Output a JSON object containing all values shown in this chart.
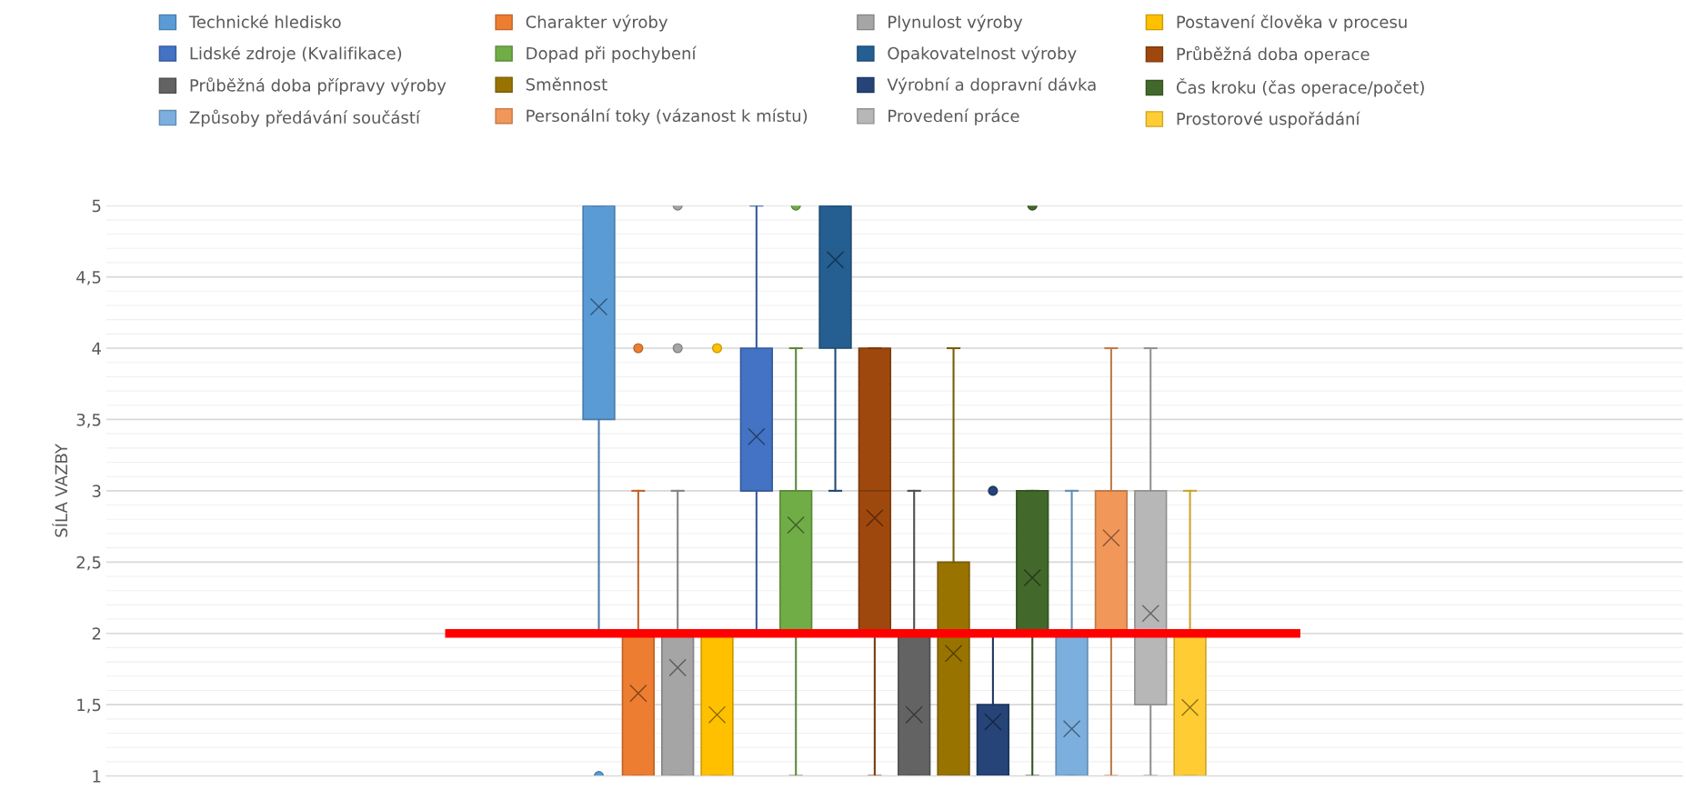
{
  "chart_data": {
    "type": "box",
    "ylabel": "SÍLA VAZBY",
    "categories": [
      null
    ],
    "ylim": [
      1,
      5
    ],
    "yticks": [
      1,
      {
        "value": 1.5,
        "label": "1,5"
      },
      2,
      {
        "value": 2.5,
        "label": "2,5"
      },
      3,
      {
        "value": 3.5,
        "label": "3,5"
      },
      4,
      {
        "value": 4.5,
        "label": "4,5"
      },
      5
    ],
    "grid": "y",
    "legend": "top",
    "tick_labels": "y",
    "ref_lines": [
      {
        "axis": "y",
        "value": 2,
        "color": "#ff0000",
        "line_style": "solid"
      }
    ],
    "series": [
      {
        "name": "Technické hledisko",
        "color": "#5b9bd5",
        "boxes": [
          {
            "low": 2,
            "q1": 3.5,
            "median": 5,
            "q3": 5,
            "high": 5,
            "mean": 4.29,
            "outliers": [
              1
            ]
          }
        ]
      },
      {
        "name": "Charakter výroby",
        "color": "#ed7d31",
        "boxes": [
          {
            "low": 1,
            "q1": 1,
            "median": 2,
            "q3": 2,
            "high": 3,
            "mean": 1.58,
            "outliers": [
              4
            ]
          }
        ]
      },
      {
        "name": "Plynulost výroby",
        "color": "#a5a5a5",
        "boxes": [
          {
            "low": 1,
            "q1": 1,
            "median": 2,
            "q3": 2,
            "high": 3,
            "mean": 1.76,
            "outliers": [
              4,
              5
            ]
          }
        ]
      },
      {
        "name": "Postavení člověka v procesu",
        "color": "#ffc000",
        "boxes": [
          {
            "low": 1,
            "q1": 1,
            "median": 2,
            "q3": 2,
            "high": 2,
            "mean": 1.43,
            "outliers": [
              4
            ]
          }
        ]
      },
      {
        "name": "Lidské zdroje (Kvalifikace)",
        "color": "#4472c4",
        "boxes": [
          {
            "low": 2,
            "q1": 3,
            "median": 3,
            "q3": 4,
            "high": 5,
            "mean": 3.38
          }
        ]
      },
      {
        "name": "Dopad při pochybení",
        "color": "#70ad47",
        "boxes": [
          {
            "low": 1,
            "q1": 2,
            "median": 3,
            "q3": 3,
            "high": 4,
            "mean": 2.76,
            "outliers": [
              5
            ]
          }
        ]
      },
      {
        "name": "Opakovatelnost výroby",
        "color": "#255e91",
        "boxes": [
          {
            "low": 3,
            "q1": 4,
            "median": 5,
            "q3": 5,
            "high": 5,
            "mean": 4.62
          }
        ]
      },
      {
        "name": "Průběžná doba operace",
        "color": "#9e480e",
        "boxes": [
          {
            "low": 1,
            "q1": 2,
            "median": 3,
            "q3": 4,
            "high": 4,
            "mean": 2.81
          }
        ]
      },
      {
        "name": "Průběžná doba přípravy výroby",
        "color": "#636363",
        "boxes": [
          {
            "low": 1,
            "q1": 1,
            "median": 1,
            "q3": 2,
            "high": 3,
            "mean": 1.43
          }
        ]
      },
      {
        "name": "Směnnost",
        "color": "#997300",
        "boxes": [
          {
            "low": 1,
            "q1": 1,
            "median": 2,
            "q3": 2.5,
            "high": 4,
            "mean": 1.86
          }
        ]
      },
      {
        "name": "Výrobní a dopravní dávka",
        "color": "#264478",
        "boxes": [
          {
            "low": 1,
            "q1": 1,
            "median": 1,
            "q3": 1.5,
            "high": 2,
            "mean": 1.38,
            "outliers": [
              3
            ]
          }
        ]
      },
      {
        "name": "Čas kroku (čas operace/počet)",
        "color": "#43682b",
        "boxes": [
          {
            "low": 1,
            "q1": 2,
            "median": 2,
            "q3": 3,
            "high": 3,
            "mean": 2.39,
            "outliers": [
              5
            ]
          }
        ]
      },
      {
        "name": "Způsoby předávání součástí",
        "color": "#7cafdd",
        "boxes": [
          {
            "low": 1,
            "q1": 1,
            "median": 1,
            "q3": 2,
            "high": 3,
            "mean": 1.33
          }
        ]
      },
      {
        "name": "Personální toky (vázanost k místu)",
        "color": "#f1975a",
        "boxes": [
          {
            "low": 1,
            "q1": 2,
            "median": 3,
            "q3": 3,
            "high": 4,
            "mean": 2.67
          }
        ]
      },
      {
        "name": "Provedení práce",
        "color": "#b7b7b7",
        "boxes": [
          {
            "low": 1,
            "q1": 1.5,
            "median": 2,
            "q3": 3,
            "high": 4,
            "mean": 2.14
          }
        ]
      },
      {
        "name": "Prostorové uspořádání",
        "color": "#ffcd33",
        "boxes": [
          {
            "low": 1,
            "q1": 1,
            "median": 2,
            "q3": 2,
            "high": 3,
            "mean": 1.48
          }
        ]
      }
    ]
  }
}
